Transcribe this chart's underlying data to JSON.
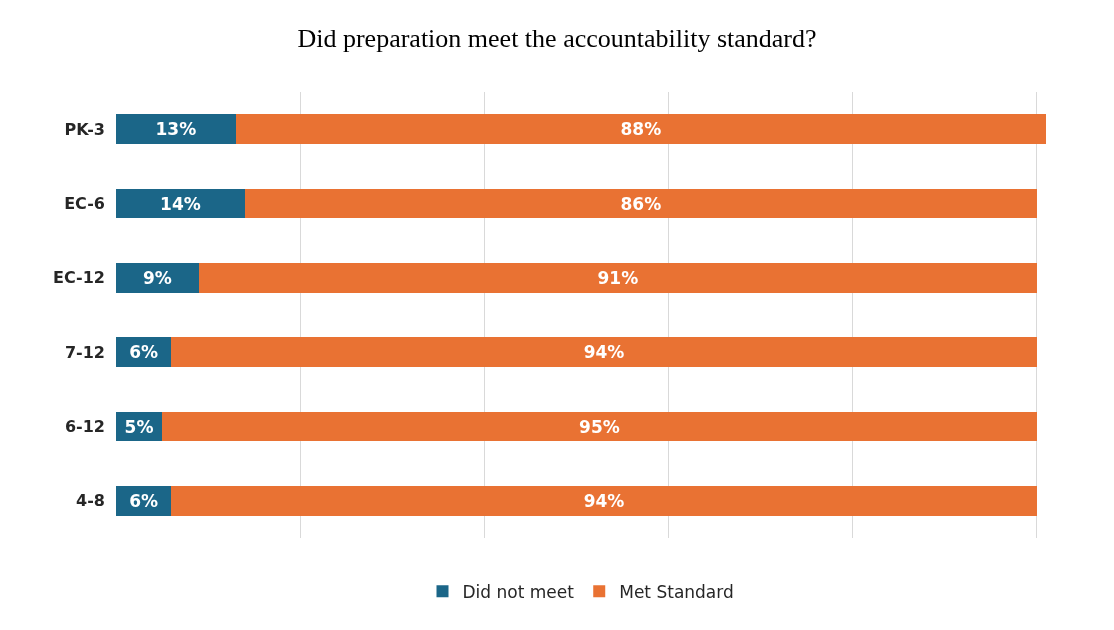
{
  "chart_data": {
    "type": "bar",
    "orientation": "horizontal",
    "stacked": true,
    "title": "Did preparation meet the accountability standard?",
    "categories": [
      "PK-3",
      "EC-6",
      "EC-12",
      "7-12",
      "6-12",
      "4-8"
    ],
    "series": [
      {
        "name": "Did not meet",
        "color": "#1b6688",
        "values": [
          13,
          14,
          9,
          6,
          5,
          6
        ],
        "value_labels": [
          "13%",
          "14%",
          "9%",
          "6%",
          "5%",
          "6%"
        ]
      },
      {
        "name": "Met Standard",
        "color": "#e97233",
        "values": [
          88,
          86,
          91,
          94,
          95,
          94
        ],
        "value_labels": [
          "88%",
          "86%",
          "91%",
          "94%",
          "95%",
          "94%"
        ]
      }
    ],
    "xlim": [
      0,
      101
    ],
    "grid": "x",
    "tick_labels": "y",
    "legend": "bottom"
  }
}
